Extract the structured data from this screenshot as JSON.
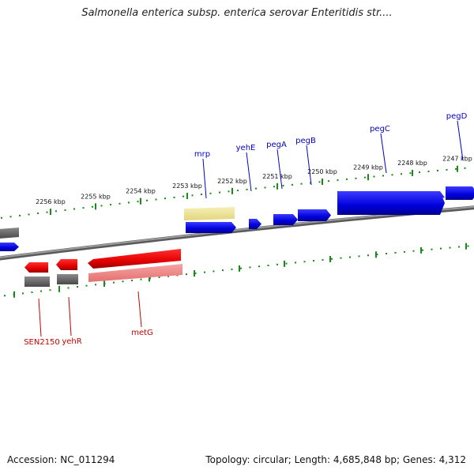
{
  "title": "Salmonella enterica subsp. enterica serovar Enteritidis str....",
  "footer": {
    "accession": "Accession: NC_011294",
    "summary": "Topology: circular; Length: 4,685,848 bp; Genes: 4,312"
  },
  "colors": {
    "forward_gene": "#0000dd",
    "reverse_gene": "#e60000",
    "reverse_rna_light": "#f08080",
    "pseudo_gray": "#6e6e6e",
    "pale_yellow": "#ece39a",
    "backbone": "#7a7a7a",
    "tick_green": "#1a8a1a",
    "forward_label": "#0000cc",
    "reverse_label": "#cc0000"
  },
  "ticks": {
    "upper": [
      "2256 kbp",
      "2255 kbp",
      "2254 kbp",
      "2253 kbp",
      "2252 kbp",
      "2251 kbp",
      "2250 kbp",
      "2249 kbp",
      "2248 kbp",
      "2247 kbp"
    ]
  },
  "genes": {
    "forward": [
      "mrp",
      "yehE",
      "pegA",
      "pegB",
      "pegC",
      "pegD"
    ],
    "reverse": [
      "SEN2150",
      "yehR",
      "metG"
    ]
  }
}
